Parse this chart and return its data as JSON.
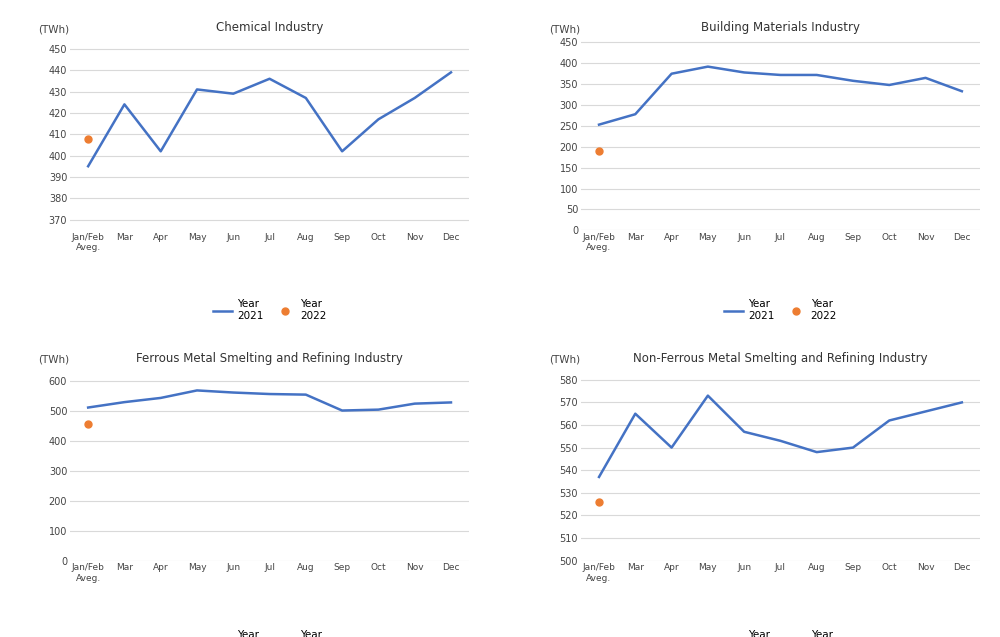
{
  "x_labels": [
    "Jan/Feb\nAveg.",
    "Mar",
    "Apr",
    "May",
    "Jun",
    "Jul",
    "Aug",
    "Sep",
    "Oct",
    "Nov",
    "Dec"
  ],
  "chemical": {
    "title": "Chemical Industry",
    "ylabel": "(TWh)",
    "year2021": [
      395,
      424,
      402,
      431,
      429,
      436,
      427,
      402,
      417,
      427,
      439
    ],
    "year2022": [
      408,
      null,
      null,
      null,
      null,
      null,
      null,
      null,
      null,
      null,
      null
    ],
    "ylim": [
      365,
      455
    ],
    "yticks": [
      370,
      380,
      390,
      400,
      410,
      420,
      430,
      440,
      450
    ]
  },
  "building": {
    "title": "Building Materials Industry",
    "ylabel": "(TWh)",
    "year2021": [
      253,
      278,
      375,
      392,
      378,
      372,
      372,
      358,
      348,
      365,
      333
    ],
    "year2022": [
      190,
      null,
      null,
      null,
      null,
      null,
      null,
      null,
      null,
      null,
      null
    ],
    "ylim": [
      0,
      460
    ],
    "yticks": [
      0,
      50,
      100,
      150,
      200,
      250,
      300,
      350,
      400,
      450
    ]
  },
  "ferrous": {
    "title": "Ferrous Metal Smelting and Refining Industry",
    "ylabel": "(TWh)",
    "year2021": [
      510,
      528,
      542,
      567,
      560,
      555,
      553,
      500,
      503,
      523,
      527
    ],
    "year2022": [
      455,
      null,
      null,
      null,
      null,
      null,
      null,
      null,
      null,
      null,
      null
    ],
    "ylim": [
      0,
      640
    ],
    "yticks": [
      0,
      100,
      200,
      300,
      400,
      500,
      600
    ]
  },
  "nonferrous": {
    "title": "Non-Ferrous Metal Smelting and Refining Industry",
    "ylabel": "(TWh)",
    "year2021": [
      537,
      565,
      550,
      573,
      557,
      553,
      548,
      550,
      562,
      566,
      570
    ],
    "year2022": [
      526,
      null,
      null,
      null,
      null,
      null,
      null,
      null,
      null,
      null,
      null
    ],
    "ylim": [
      500,
      585
    ],
    "yticks": [
      500,
      510,
      520,
      530,
      540,
      550,
      560,
      570,
      580
    ]
  },
  "line_color_2021": "#4472C4",
  "line_color_2022": "#ED7D31",
  "background_color": "#FFFFFF",
  "grid_color": "#D9D9D9"
}
